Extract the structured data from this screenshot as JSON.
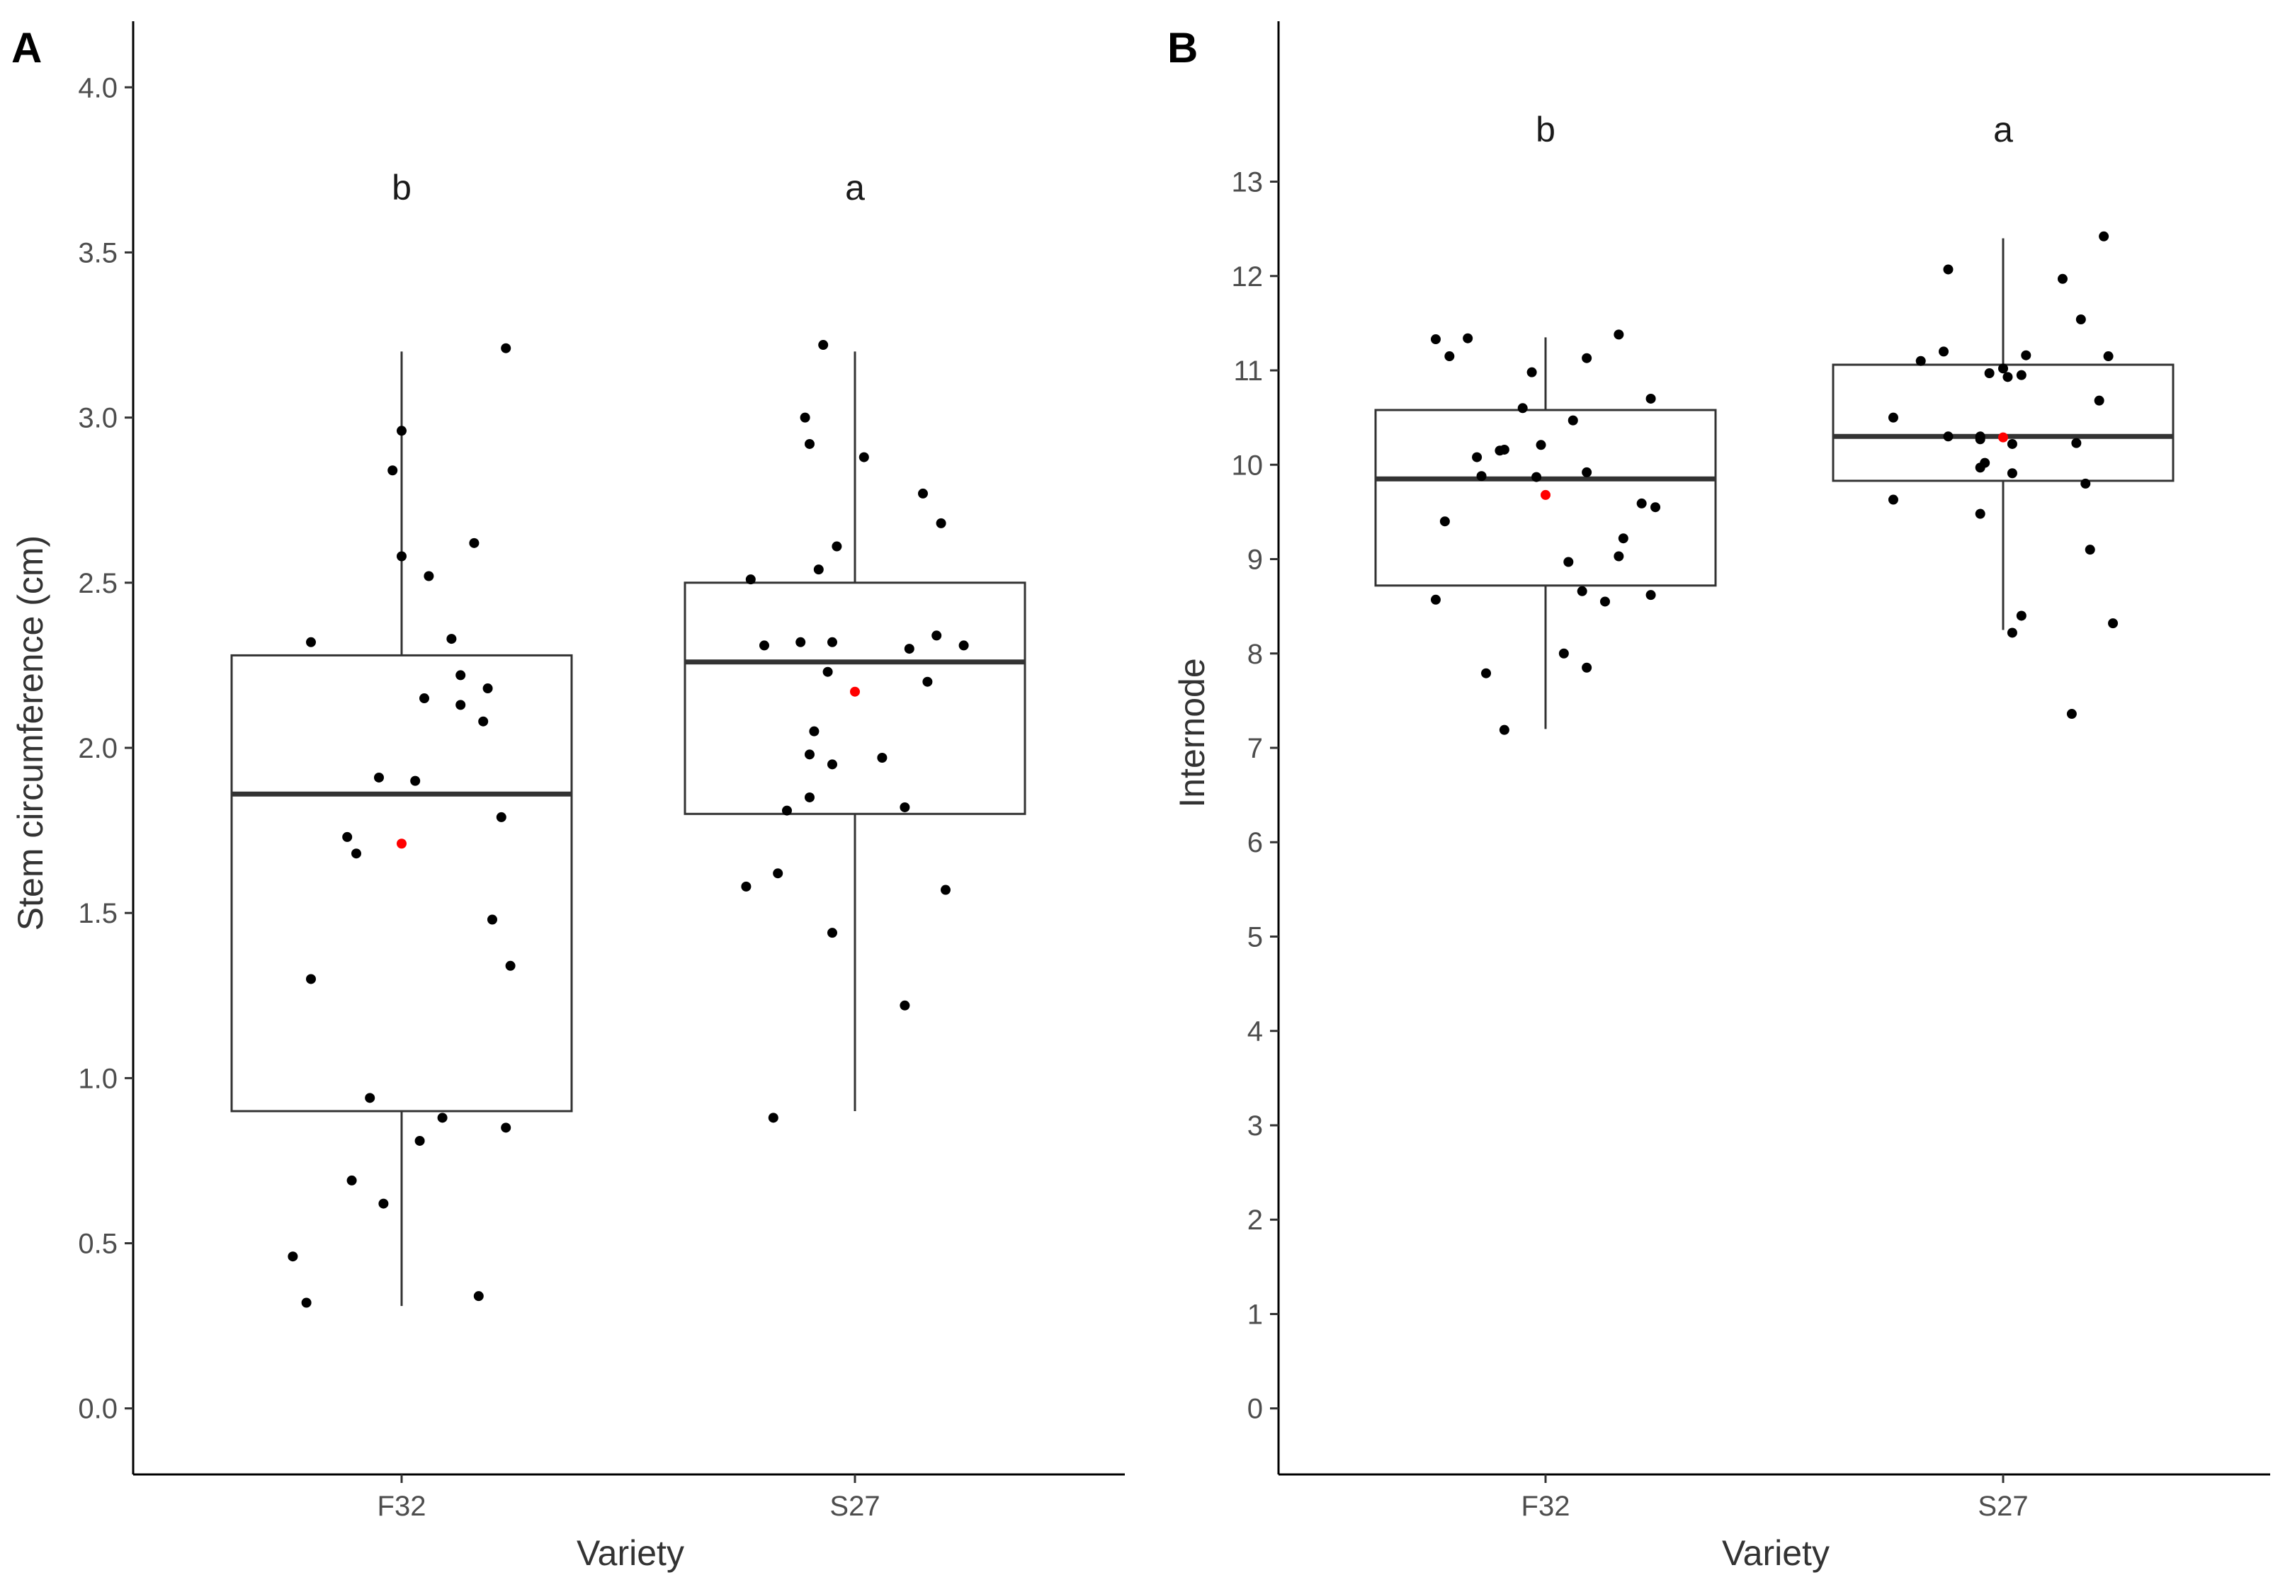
{
  "chart_data": [
    {
      "panel_label": "A",
      "type": "boxplot",
      "title": "",
      "xlabel": "Variety",
      "ylabel": "Stem circumference (cm)",
      "ylim": [
        -0.2,
        4.2
      ],
      "yticks": [
        0.0,
        0.5,
        1.0,
        1.5,
        2.0,
        2.5,
        3.0,
        3.5,
        4.0
      ],
      "ytick_labels": [
        "0.0",
        "0.5",
        "1.0",
        "1.5",
        "2.0",
        "2.5",
        "3.0",
        "3.5",
        "4.0"
      ],
      "categories": [
        "F32",
        "S27"
      ],
      "grid": false,
      "mean_color": "#ff0000",
      "point_color": "#000000",
      "boxes": [
        {
          "category": "F32",
          "whisker_low": 0.31,
          "q1": 0.9,
          "median": 1.86,
          "q3": 2.28,
          "whisker_high": 3.2,
          "mean": 1.71,
          "significance": "b",
          "points": [
            {
              "x": -0.2,
              "y": 2.32
            },
            {
              "x": 0.23,
              "y": 3.21
            },
            {
              "x": 0.0,
              "y": 2.96
            },
            {
              "x": -0.02,
              "y": 2.84
            },
            {
              "x": 0.0,
              "y": 2.58
            },
            {
              "x": 0.16,
              "y": 2.62
            },
            {
              "x": 0.06,
              "y": 2.52
            },
            {
              "x": 0.11,
              "y": 2.33
            },
            {
              "x": 0.13,
              "y": 2.22
            },
            {
              "x": 0.19,
              "y": 2.18
            },
            {
              "x": 0.05,
              "y": 2.15
            },
            {
              "x": 0.13,
              "y": 2.13
            },
            {
              "x": 0.18,
              "y": 2.08
            },
            {
              "x": -0.05,
              "y": 1.91
            },
            {
              "x": 0.03,
              "y": 1.9
            },
            {
              "x": 0.22,
              "y": 1.79
            },
            {
              "x": -0.12,
              "y": 1.73
            },
            {
              "x": -0.1,
              "y": 1.68
            },
            {
              "x": 0.2,
              "y": 1.48
            },
            {
              "x": 0.24,
              "y": 1.34
            },
            {
              "x": -0.2,
              "y": 1.3
            },
            {
              "x": -0.07,
              "y": 0.94
            },
            {
              "x": 0.09,
              "y": 0.88
            },
            {
              "x": 0.23,
              "y": 0.85
            },
            {
              "x": 0.04,
              "y": 0.81
            },
            {
              "x": -0.11,
              "y": 0.69
            },
            {
              "x": -0.04,
              "y": 0.62
            },
            {
              "x": -0.24,
              "y": 0.46
            },
            {
              "x": 0.17,
              "y": 0.34
            },
            {
              "x": -0.21,
              "y": 0.32
            }
          ]
        },
        {
          "category": "S27",
          "whisker_low": 0.9,
          "q1": 1.8,
          "median": 2.26,
          "q3": 2.5,
          "whisker_high": 3.2,
          "mean": 2.17,
          "significance": "a",
          "points": [
            {
              "x": -0.07,
              "y": 3.22
            },
            {
              "x": -0.11,
              "y": 3.0
            },
            {
              "x": -0.1,
              "y": 2.92
            },
            {
              "x": 0.02,
              "y": 2.88
            },
            {
              "x": 0.15,
              "y": 2.77
            },
            {
              "x": 0.19,
              "y": 2.68
            },
            {
              "x": -0.04,
              "y": 2.61
            },
            {
              "x": -0.08,
              "y": 2.54
            },
            {
              "x": -0.23,
              "y": 2.51
            },
            {
              "x": 0.18,
              "y": 2.34
            },
            {
              "x": -0.12,
              "y": 2.32
            },
            {
              "x": -0.05,
              "y": 2.32
            },
            {
              "x": -0.2,
              "y": 2.31
            },
            {
              "x": 0.24,
              "y": 2.31
            },
            {
              "x": 0.12,
              "y": 2.3
            },
            {
              "x": -0.06,
              "y": 2.23
            },
            {
              "x": 0.16,
              "y": 2.2
            },
            {
              "x": -0.09,
              "y": 2.05
            },
            {
              "x": -0.1,
              "y": 1.98
            },
            {
              "x": 0.06,
              "y": 1.97
            },
            {
              "x": -0.05,
              "y": 1.95
            },
            {
              "x": -0.1,
              "y": 1.85
            },
            {
              "x": 0.11,
              "y": 1.82
            },
            {
              "x": -0.15,
              "y": 1.81
            },
            {
              "x": -0.24,
              "y": 1.58
            },
            {
              "x": -0.17,
              "y": 1.62
            },
            {
              "x": 0.2,
              "y": 1.57
            },
            {
              "x": -0.05,
              "y": 1.44
            },
            {
              "x": 0.11,
              "y": 1.22
            },
            {
              "x": -0.18,
              "y": 0.88
            }
          ]
        }
      ]
    },
    {
      "panel_label": "B",
      "type": "boxplot",
      "title": "",
      "xlabel": "Variety",
      "ylabel": "Internode",
      "ylim": [
        -0.7,
        14.7
      ],
      "yticks": [
        0,
        1,
        2,
        3,
        4,
        5,
        6,
        7,
        8,
        9,
        10,
        11,
        12,
        13
      ],
      "ytick_labels": [
        "0",
        "1",
        "2",
        "3",
        "4",
        "5",
        "6",
        "7",
        "8",
        "9",
        "10",
        "11",
        "12",
        "13"
      ],
      "categories": [
        "F32",
        "S27"
      ],
      "grid": false,
      "mean_color": "#ff0000",
      "point_color": "#000000",
      "boxes": [
        {
          "category": "F32",
          "whisker_low": 7.2,
          "q1": 8.72,
          "median": 9.85,
          "q3": 10.58,
          "whisker_high": 11.35,
          "mean": 9.68,
          "significance": "b",
          "points": [
            {
              "x": -0.24,
              "y": 11.33
            },
            {
              "x": -0.17,
              "y": 11.34
            },
            {
              "x": -0.21,
              "y": 11.15
            },
            {
              "x": 0.16,
              "y": 11.38
            },
            {
              "x": 0.09,
              "y": 11.13
            },
            {
              "x": -0.03,
              "y": 10.98
            },
            {
              "x": 0.23,
              "y": 10.7
            },
            {
              "x": -0.05,
              "y": 10.6
            },
            {
              "x": 0.06,
              "y": 10.47
            },
            {
              "x": -0.01,
              "y": 10.21
            },
            {
              "x": -0.09,
              "y": 10.16
            },
            {
              "x": -0.1,
              "y": 10.15
            },
            {
              "x": -0.15,
              "y": 10.08
            },
            {
              "x": 0.09,
              "y": 9.92
            },
            {
              "x": -0.14,
              "y": 9.88
            },
            {
              "x": -0.02,
              "y": 9.87
            },
            {
              "x": 0.21,
              "y": 9.59
            },
            {
              "x": 0.24,
              "y": 9.55
            },
            {
              "x": -0.22,
              "y": 9.4
            },
            {
              "x": 0.17,
              "y": 9.22
            },
            {
              "x": 0.16,
              "y": 9.03
            },
            {
              "x": 0.05,
              "y": 8.97
            },
            {
              "x": 0.08,
              "y": 8.66
            },
            {
              "x": 0.23,
              "y": 8.62
            },
            {
              "x": -0.24,
              "y": 8.57
            },
            {
              "x": 0.13,
              "y": 8.55
            },
            {
              "x": 0.04,
              "y": 8.0
            },
            {
              "x": 0.09,
              "y": 7.85
            },
            {
              "x": -0.13,
              "y": 7.79
            },
            {
              "x": -0.09,
              "y": 7.19
            }
          ]
        },
        {
          "category": "S27",
          "whisker_low": 8.25,
          "q1": 9.83,
          "median": 10.3,
          "q3": 11.06,
          "whisker_high": 12.4,
          "mean": 10.29,
          "significance": "a",
          "points": [
            {
              "x": 0.22,
              "y": 12.42
            },
            {
              "x": -0.12,
              "y": 12.07
            },
            {
              "x": 0.13,
              "y": 11.97
            },
            {
              "x": 0.17,
              "y": 11.54
            },
            {
              "x": -0.13,
              "y": 11.2
            },
            {
              "x": 0.05,
              "y": 11.16
            },
            {
              "x": 0.23,
              "y": 11.15
            },
            {
              "x": -0.18,
              "y": 11.1
            },
            {
              "x": 0.0,
              "y": 11.02
            },
            {
              "x": 0.01,
              "y": 10.93
            },
            {
              "x": -0.03,
              "y": 10.97
            },
            {
              "x": 0.04,
              "y": 10.95
            },
            {
              "x": 0.21,
              "y": 10.68
            },
            {
              "x": -0.24,
              "y": 10.5
            },
            {
              "x": -0.05,
              "y": 10.3
            },
            {
              "x": -0.05,
              "y": 10.27
            },
            {
              "x": -0.12,
              "y": 10.3
            },
            {
              "x": 0.02,
              "y": 10.22
            },
            {
              "x": 0.16,
              "y": 10.23
            },
            {
              "x": -0.04,
              "y": 10.02
            },
            {
              "x": -0.05,
              "y": 9.97
            },
            {
              "x": 0.02,
              "y": 9.91
            },
            {
              "x": 0.18,
              "y": 9.8
            },
            {
              "x": -0.24,
              "y": 9.63
            },
            {
              "x": -0.05,
              "y": 9.48
            },
            {
              "x": 0.19,
              "y": 9.1
            },
            {
              "x": 0.04,
              "y": 8.4
            },
            {
              "x": 0.02,
              "y": 8.22
            },
            {
              "x": 0.24,
              "y": 8.32
            },
            {
              "x": 0.15,
              "y": 7.36
            }
          ]
        }
      ]
    }
  ]
}
